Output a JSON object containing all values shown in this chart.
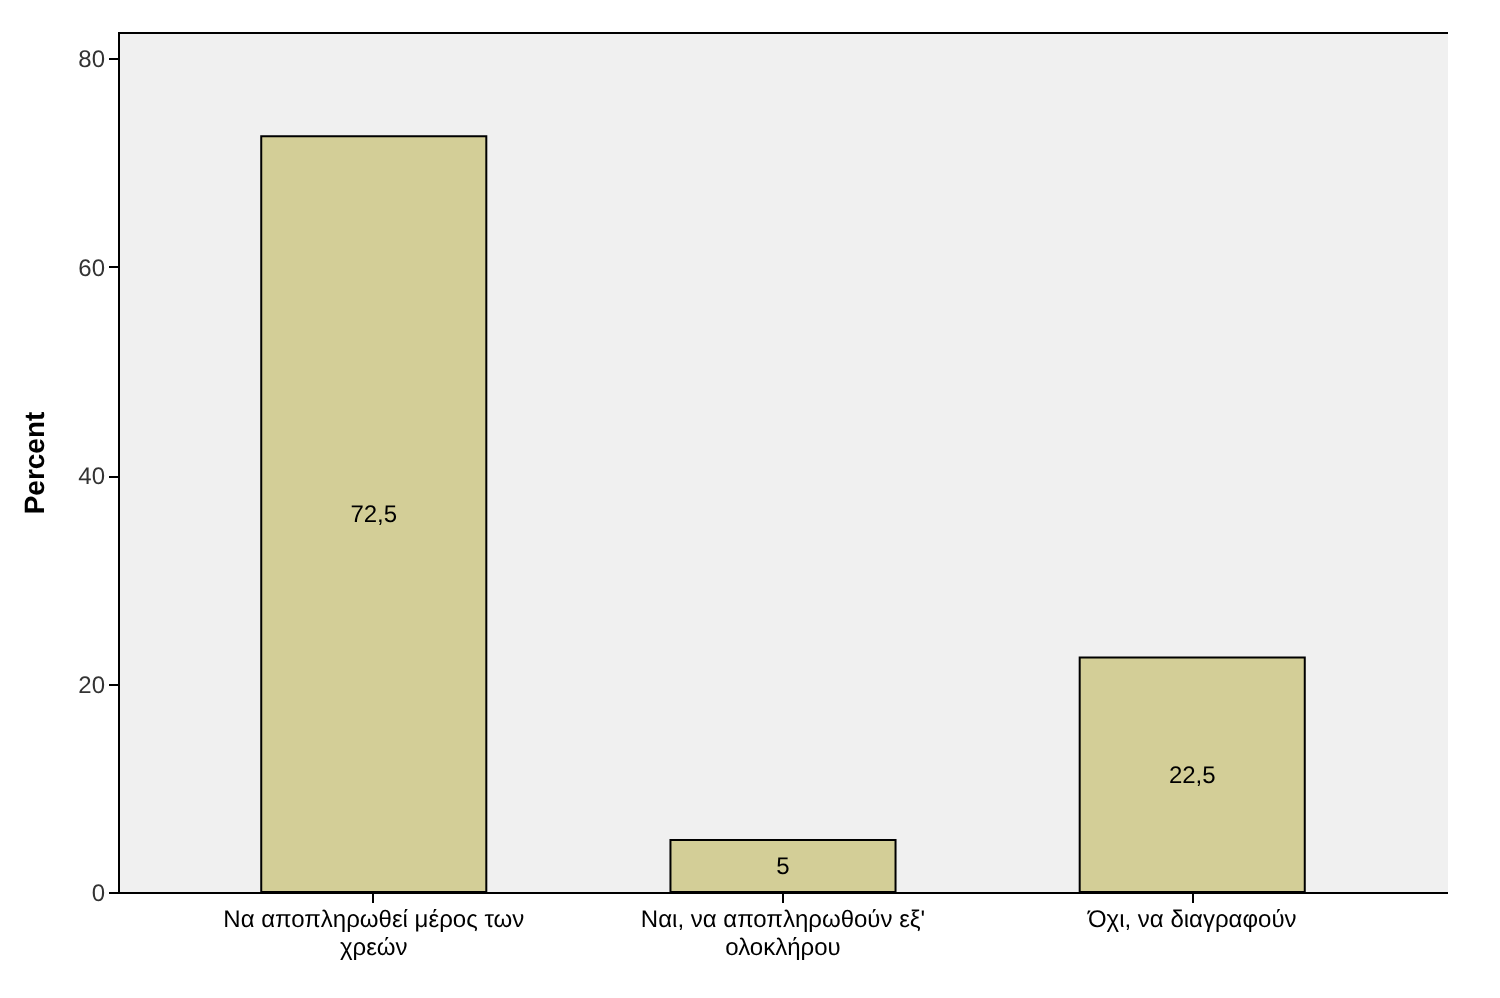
{
  "chart_data": {
    "type": "bar",
    "ylabel": "Percent",
    "categories": [
      "Να αποπληρωθεί μέρος των χρεών",
      "Ναι, να αποπληρωθούν εξ' ολοκλήρου",
      "Όχι, να διαγραφούν"
    ],
    "values": [
      72.5,
      5,
      22.5
    ],
    "value_labels": [
      "72,5",
      "5",
      "22,5"
    ],
    "color": "#d3ce97",
    "ylim": [
      0,
      82.5
    ],
    "yticks": [
      0,
      20,
      40,
      60,
      80
    ],
    "grid": false
  }
}
